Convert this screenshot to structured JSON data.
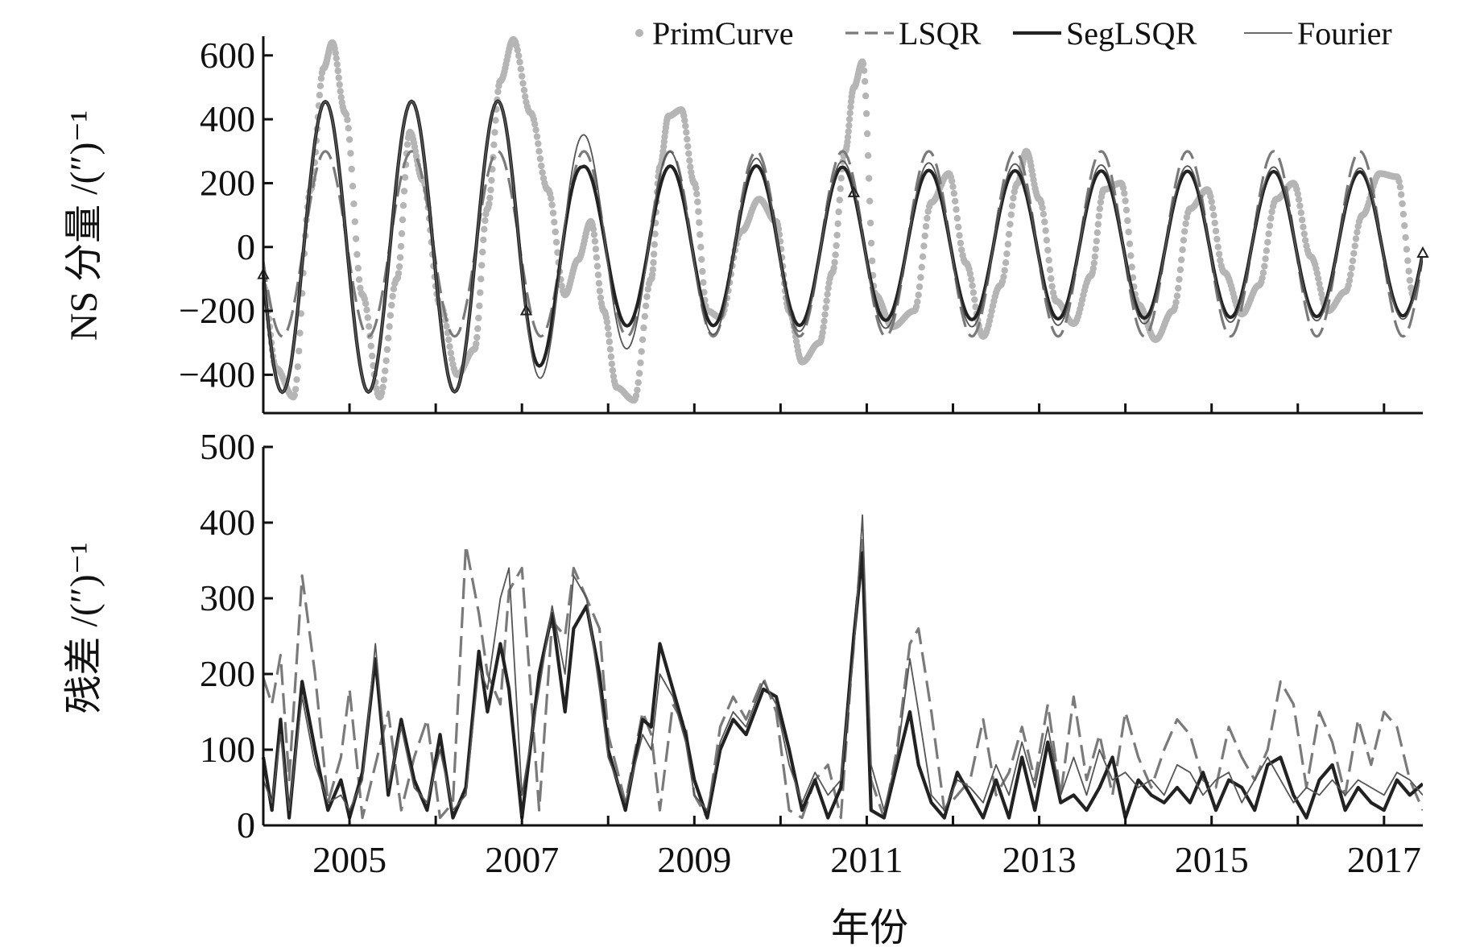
{
  "figure": {
    "xlabel": "年份",
    "top_ylabel": "NS 分量 /(″)⁻¹",
    "bottom_ylabel": "残差 /(″)⁻¹"
  },
  "legend": [
    {
      "label": "PrimCurve",
      "style": "dots",
      "color": "#b5b5b5"
    },
    {
      "label": "LSQR",
      "style": "dashed",
      "color": "#7a7a7a"
    },
    {
      "label": "SegLSQR",
      "style": "thick",
      "color": "#222222"
    },
    {
      "label": "Fourier",
      "style": "thin",
      "color": "#555555"
    }
  ],
  "chart_data": [
    {
      "type": "line",
      "panel": "top",
      "xlabel": "年份",
      "ylabel": "NS 分量 /(″)⁻¹",
      "xlim": [
        2004.0,
        2017.45
      ],
      "ylim": [
        -520,
        660
      ],
      "yticks": [
        -400,
        -200,
        0,
        200,
        400,
        600
      ],
      "ytick_labels": [
        "−400",
        "−200",
        "0",
        "200",
        "400",
        "600"
      ],
      "xticks": [
        2005,
        2007,
        2009,
        2011,
        2013,
        2015,
        2017
      ],
      "grid": false,
      "legend_position": "top-right",
      "series": [
        {
          "name": "PrimCurve",
          "style": "dots",
          "color": "#b5b5b5",
          "x": [
            2004.0,
            2004.15,
            2004.35,
            2004.55,
            2004.7,
            2004.8,
            2004.95,
            2005.15,
            2005.35,
            2005.55,
            2005.7,
            2005.85,
            2006.05,
            2006.25,
            2006.45,
            2006.6,
            2006.75,
            2006.9,
            2007.1,
            2007.3,
            2007.5,
            2007.65,
            2007.8,
            2007.95,
            2008.1,
            2008.3,
            2008.5,
            2008.6,
            2008.7,
            2008.85,
            2009.0,
            2009.15,
            2009.3,
            2009.55,
            2009.75,
            2009.95,
            2010.1,
            2010.25,
            2010.45,
            2010.6,
            2010.75,
            2010.85,
            2010.95,
            2011.1,
            2011.3,
            2011.55,
            2011.75,
            2011.95,
            2012.15,
            2012.35,
            2012.55,
            2012.75,
            2012.85,
            2013.0,
            2013.2,
            2013.4,
            2013.6,
            2013.75,
            2013.95,
            2014.15,
            2014.35,
            2014.55,
            2014.75,
            2014.95,
            2015.15,
            2015.35,
            2015.55,
            2015.75,
            2015.95,
            2016.15,
            2016.35,
            2016.55,
            2016.75,
            2016.95,
            2017.15,
            2017.35
          ],
          "y": [
            -120,
            -380,
            -470,
            180,
            560,
            640,
            420,
            -150,
            -470,
            -100,
            360,
            210,
            -180,
            -400,
            -320,
            120,
            520,
            650,
            420,
            180,
            -150,
            -40,
            80,
            -200,
            -440,
            -480,
            -100,
            250,
            410,
            430,
            200,
            -200,
            -220,
            50,
            150,
            80,
            -200,
            -360,
            -300,
            -80,
            300,
            500,
            580,
            -150,
            -250,
            -200,
            140,
            230,
            -50,
            -280,
            -120,
            200,
            300,
            150,
            -170,
            -240,
            -90,
            180,
            200,
            -180,
            -290,
            -200,
            120,
            180,
            -80,
            -210,
            -120,
            150,
            200,
            -30,
            -200,
            -140,
            100,
            230,
            220,
            -160
          ]
        },
        {
          "name": "LSQR",
          "style": "dashed",
          "color": "#7a7a7a",
          "x": [],
          "y": [],
          "model": {
            "period": 1.0,
            "peak_phase": 0.72,
            "amplitude_knots": [
              2004.0,
              2007.2,
              2007.8,
              2017.45
            ],
            "amplitude_values": [
              290,
              290,
              290,
              290
            ],
            "offset_knots": [
              2004.0,
              2017.45
            ],
            "offset_values": [
              10,
              10
            ]
          }
        },
        {
          "name": "SegLSQR",
          "style": "thick",
          "color": "#222222",
          "x": [],
          "y": [],
          "model": {
            "period": 1.0,
            "peak_phase": 0.72,
            "amplitude_knots": [
              2004.0,
              2006.9,
              2007.7,
              2010.5,
              2011.2,
              2017.45
            ],
            "amplitude_values": [
              455,
              455,
              250,
              250,
              235,
              225
            ],
            "offset_knots": [
              2004.0,
              2017.45
            ],
            "offset_values": [
              0,
              10
            ]
          }
        },
        {
          "name": "Fourier",
          "style": "thin",
          "color": "#555555",
          "x": [],
          "y": [],
          "model": {
            "period": 1.0,
            "peak_phase": 0.72,
            "amplitude_knots": [
              2004.0,
              2006.9,
              2007.7,
              2009.0,
              2011.2,
              2017.45
            ],
            "amplitude_values": [
              455,
              455,
              350,
              280,
              260,
              235
            ],
            "offset_knots": [
              2004.0,
              2017.45
            ],
            "offset_values": [
              0,
              10
            ]
          }
        }
      ]
    },
    {
      "type": "line",
      "panel": "bottom",
      "xlabel": "年份",
      "ylabel": "残差 /(″)⁻¹",
      "xlim": [
        2004.0,
        2017.45
      ],
      "ylim": [
        0,
        500
      ],
      "yticks": [
        0,
        100,
        200,
        300,
        400,
        500
      ],
      "ytick_labels": [
        "0",
        "100",
        "200",
        "300",
        "400",
        "500"
      ],
      "xticks": [
        2005,
        2007,
        2009,
        2011,
        2013,
        2015,
        2017
      ],
      "xtick_labels": [
        "2005",
        "2007",
        "2009",
        "2011",
        "2013",
        "2015",
        "2017"
      ],
      "grid": false,
      "series": [
        {
          "name": "LSQR",
          "style": "dashed",
          "color": "#7a7a7a",
          "x": [
            2004.0,
            2004.1,
            2004.2,
            2004.3,
            2004.45,
            2004.6,
            2004.75,
            2004.9,
            2005.0,
            2005.15,
            2005.3,
            2005.45,
            2005.6,
            2005.75,
            2005.9,
            2006.05,
            2006.2,
            2006.35,
            2006.5,
            2006.6,
            2006.75,
            2006.85,
            2007.0,
            2007.2,
            2007.35,
            2007.5,
            2007.6,
            2007.75,
            2007.9,
            2008.0,
            2008.2,
            2008.4,
            2008.5,
            2008.6,
            2008.75,
            2008.9,
            2009.0,
            2009.15,
            2009.3,
            2009.45,
            2009.6,
            2009.8,
            2009.95,
            2010.1,
            2010.25,
            2010.4,
            2010.55,
            2010.7,
            2010.85,
            2010.95,
            2011.05,
            2011.2,
            2011.35,
            2011.5,
            2011.6,
            2011.75,
            2011.9,
            2012.05,
            2012.2,
            2012.35,
            2012.5,
            2012.65,
            2012.8,
            2012.95,
            2013.1,
            2013.25,
            2013.4,
            2013.55,
            2013.7,
            2013.85,
            2014.0,
            2014.15,
            2014.3,
            2014.45,
            2014.6,
            2014.75,
            2014.9,
            2015.05,
            2015.2,
            2015.35,
            2015.5,
            2015.65,
            2015.8,
            2015.95,
            2016.1,
            2016.25,
            2016.4,
            2016.55,
            2016.7,
            2016.85,
            2017.0,
            2017.15,
            2017.3,
            2017.45
          ],
          "y": [
            195,
            160,
            225,
            60,
            330,
            200,
            30,
            90,
            180,
            10,
            80,
            150,
            20,
            90,
            140,
            10,
            30,
            370,
            280,
            200,
            160,
            310,
            340,
            20,
            270,
            250,
            340,
            300,
            260,
            120,
            30,
            150,
            120,
            20,
            160,
            130,
            40,
            10,
            130,
            170,
            140,
            195,
            150,
            20,
            10,
            60,
            80,
            10,
            250,
            380,
            60,
            10,
            100,
            240,
            260,
            150,
            20,
            40,
            60,
            140,
            40,
            70,
            130,
            60,
            160,
            40,
            170,
            60,
            120,
            40,
            150,
            90,
            50,
            100,
            140,
            120,
            60,
            50,
            130,
            90,
            60,
            100,
            190,
            160,
            50,
            150,
            110,
            40,
            140,
            80,
            150,
            130,
            60,
            20
          ]
        },
        {
          "name": "SegLSQR",
          "style": "thick",
          "color": "#222222",
          "x": [
            2004.0,
            2004.1,
            2004.2,
            2004.3,
            2004.45,
            2004.6,
            2004.75,
            2004.9,
            2005.0,
            2005.15,
            2005.3,
            2005.45,
            2005.6,
            2005.75,
            2005.9,
            2006.05,
            2006.2,
            2006.35,
            2006.5,
            2006.6,
            2006.75,
            2006.85,
            2007.0,
            2007.2,
            2007.35,
            2007.5,
            2007.6,
            2007.75,
            2007.9,
            2008.0,
            2008.2,
            2008.4,
            2008.5,
            2008.6,
            2008.75,
            2008.9,
            2009.0,
            2009.15,
            2009.3,
            2009.45,
            2009.6,
            2009.8,
            2009.95,
            2010.1,
            2010.25,
            2010.4,
            2010.55,
            2010.7,
            2010.85,
            2010.95,
            2011.05,
            2011.2,
            2011.35,
            2011.5,
            2011.6,
            2011.75,
            2011.9,
            2012.05,
            2012.2,
            2012.35,
            2012.5,
            2012.65,
            2012.8,
            2012.95,
            2013.1,
            2013.25,
            2013.4,
            2013.55,
            2013.7,
            2013.85,
            2014.0,
            2014.15,
            2014.3,
            2014.45,
            2014.6,
            2014.75,
            2014.9,
            2015.05,
            2015.2,
            2015.35,
            2015.5,
            2015.65,
            2015.8,
            2015.95,
            2016.1,
            2016.25,
            2016.4,
            2016.55,
            2016.7,
            2016.85,
            2017.0,
            2017.15,
            2017.3,
            2017.45
          ],
          "y": [
            90,
            20,
            140,
            10,
            190,
            100,
            20,
            60,
            10,
            70,
            220,
            40,
            140,
            60,
            20,
            120,
            10,
            50,
            230,
            150,
            240,
            180,
            10,
            200,
            280,
            150,
            260,
            290,
            200,
            100,
            20,
            140,
            130,
            240,
            180,
            120,
            60,
            10,
            100,
            140,
            120,
            180,
            170,
            100,
            20,
            60,
            10,
            50,
            250,
            360,
            20,
            10,
            80,
            150,
            80,
            30,
            10,
            70,
            40,
            10,
            60,
            10,
            90,
            20,
            110,
            30,
            40,
            20,
            50,
            90,
            10,
            60,
            40,
            30,
            50,
            30,
            70,
            20,
            60,
            50,
            20,
            80,
            90,
            40,
            10,
            60,
            80,
            20,
            50,
            30,
            20,
            60,
            40,
            55
          ]
        },
        {
          "name": "Fourier",
          "style": "thin",
          "color": "#555555",
          "x": [
            2004.0,
            2004.1,
            2004.2,
            2004.3,
            2004.45,
            2004.6,
            2004.75,
            2004.9,
            2005.0,
            2005.15,
            2005.3,
            2005.45,
            2005.6,
            2005.75,
            2005.9,
            2006.05,
            2006.2,
            2006.35,
            2006.5,
            2006.6,
            2006.75,
            2006.85,
            2007.0,
            2007.2,
            2007.35,
            2007.5,
            2007.6,
            2007.75,
            2007.9,
            2008.0,
            2008.2,
            2008.4,
            2008.5,
            2008.6,
            2008.75,
            2008.9,
            2009.0,
            2009.15,
            2009.3,
            2009.45,
            2009.6,
            2009.8,
            2009.95,
            2010.1,
            2010.25,
            2010.4,
            2010.55,
            2010.7,
            2010.85,
            2010.95,
            2011.05,
            2011.2,
            2011.35,
            2011.5,
            2011.6,
            2011.75,
            2011.9,
            2012.05,
            2012.2,
            2012.35,
            2012.5,
            2012.65,
            2012.8,
            2012.95,
            2013.1,
            2013.25,
            2013.4,
            2013.55,
            2013.7,
            2013.85,
            2014.0,
            2014.15,
            2014.3,
            2014.45,
            2014.6,
            2014.75,
            2014.9,
            2015.05,
            2015.2,
            2015.35,
            2015.5,
            2015.65,
            2015.8,
            2015.95,
            2016.1,
            2016.25,
            2016.4,
            2016.55,
            2016.7,
            2016.85,
            2017.0,
            2017.15,
            2017.3,
            2017.45
          ],
          "y": [
            60,
            30,
            120,
            20,
            170,
            80,
            30,
            40,
            20,
            60,
            240,
            50,
            130,
            50,
            30,
            100,
            20,
            40,
            210,
            180,
            300,
            340,
            40,
            180,
            290,
            200,
            330,
            300,
            180,
            90,
            30,
            120,
            100,
            200,
            170,
            110,
            40,
            20,
            110,
            150,
            130,
            190,
            160,
            80,
            30,
            70,
            40,
            60,
            230,
            410,
            80,
            20,
            90,
            220,
            150,
            40,
            20,
            60,
            50,
            30,
            80,
            40,
            110,
            50,
            130,
            40,
            90,
            40,
            100,
            60,
            70,
            50,
            60,
            40,
            80,
            70,
            40,
            60,
            70,
            30,
            60,
            90,
            60,
            30,
            50,
            40,
            60,
            40,
            60,
            50,
            40,
            70,
            60,
            40
          ]
        }
      ]
    }
  ]
}
